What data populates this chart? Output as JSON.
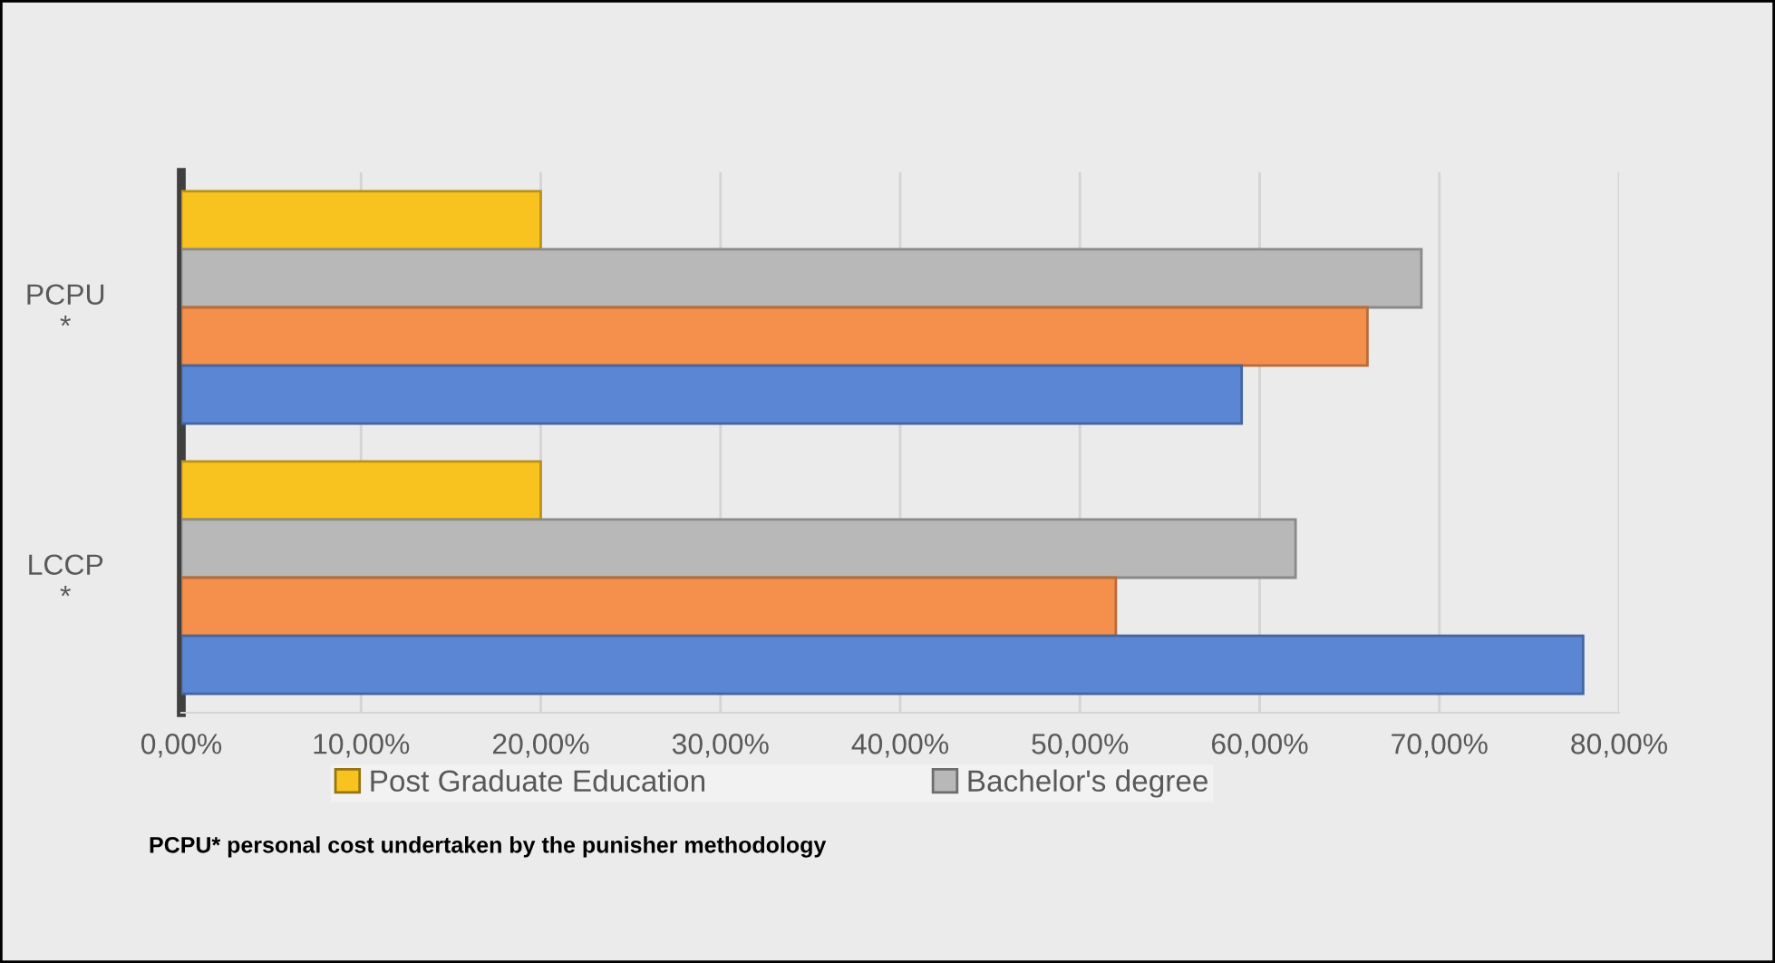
{
  "chart_data": {
    "type": "bar",
    "orientation": "horizontal",
    "categories": [
      "PCPU\n*",
      "LCCP\n*"
    ],
    "series": [
      {
        "name": "Post Graduate Education",
        "color": "#f9c31f",
        "values": [
          20,
          20
        ]
      },
      {
        "name": "Bachelor's degree",
        "color": "#b8b8b8",
        "values": [
          69,
          62
        ]
      },
      {
        "color": "#f4904c",
        "values": [
          66,
          52
        ]
      },
      {
        "color": "#5a86d4",
        "values": [
          59,
          78
        ]
      }
    ],
    "xlim": [
      0,
      80
    ],
    "xticks": [
      {
        "value": 0,
        "label": "0,00%"
      },
      {
        "value": 10,
        "label": "10,00%"
      },
      {
        "value": 20,
        "label": "20,00%"
      },
      {
        "value": 30,
        "label": "30,00%"
      },
      {
        "value": 40,
        "label": "40,00%"
      },
      {
        "value": 50,
        "label": "50,00%"
      },
      {
        "value": 60,
        "label": "60,00%"
      },
      {
        "value": 70,
        "label": "70,00%"
      },
      {
        "value": 80,
        "label": "80,00%"
      }
    ],
    "grid": "x",
    "legend": "bottom",
    "annotations": [
      "PCPU* personal cost undertaken by the punisher methodology"
    ]
  }
}
